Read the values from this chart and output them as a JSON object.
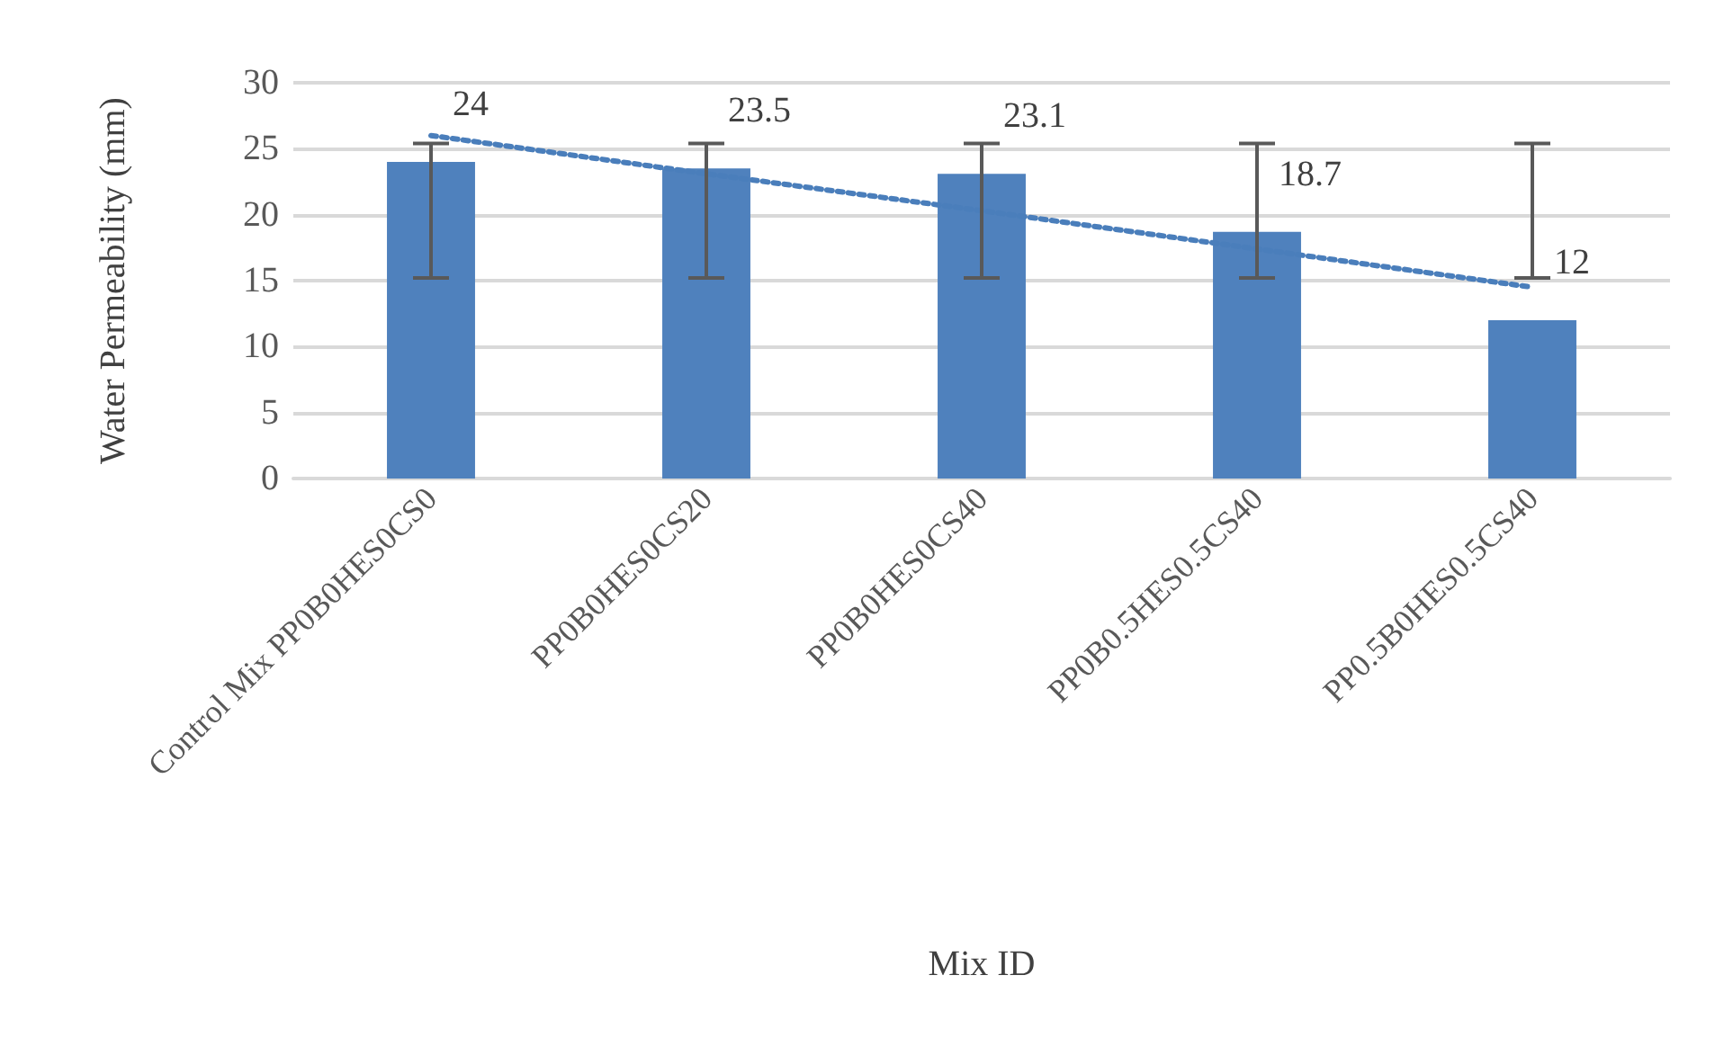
{
  "chart_data": {
    "type": "bar",
    "xlabel": "Mix ID",
    "ylabel": "Water Permeability (mm)",
    "categories": [
      "Control Mix PP0B0HES0CS0",
      "PP0B0HES0CS20",
      "PP0B0HES0CS40",
      "PP0B0.5HES0.5CS40",
      "PP0.5B0HES0.5CS40"
    ],
    "series": [
      {
        "color": "#4f81bd",
        "values": [
          24,
          23.5,
          23.1,
          18.7,
          12
        ],
        "value_labels": [
          "24",
          "23.5",
          "23.1",
          "18.7",
          "12"
        ],
        "errors": [
          [
            15.2,
            25.4
          ],
          [
            15.2,
            25.4
          ],
          [
            15.2,
            25.4
          ],
          [
            15.2,
            25.4
          ],
          [
            15.2,
            25.4
          ]
        ]
      },
      {
        "type": "line",
        "color": "#4a7ebb",
        "line_style": "dotted",
        "marker": "none",
        "x": [
          "Control Mix PP0B0HES0CS0",
          "PP0B0HES0CS20",
          "PP0B0HES0CS40",
          "PP0B0.5HES0.5CS40",
          "PP0.5B0HES0.5CS40"
        ],
        "values": [
          26,
          23.1,
          20.3,
          17.4,
          14.5
        ]
      }
    ],
    "ylim": [
      0,
      30
    ],
    "yticks": [
      0,
      5,
      10,
      15,
      20,
      25,
      30
    ],
    "grid": "y"
  }
}
